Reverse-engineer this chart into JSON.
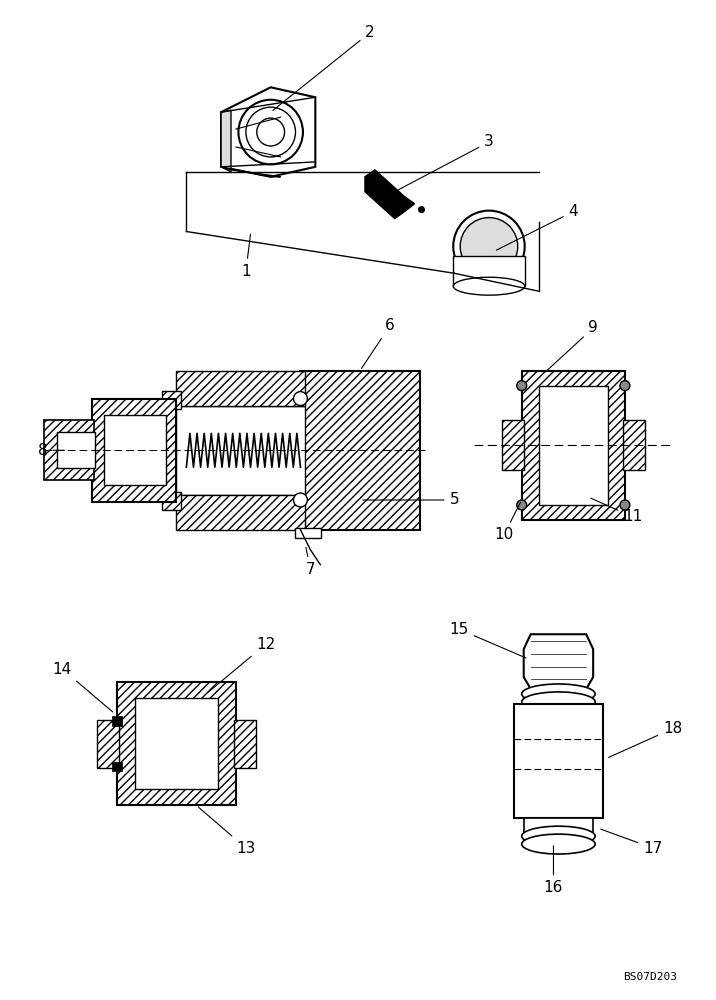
{
  "bg_color": "#ffffff",
  "fig_width": 7.16,
  "fig_height": 10.0,
  "dpi": 100,
  "watermark": "BS07D203",
  "lc": "#000000",
  "hatch": "////"
}
